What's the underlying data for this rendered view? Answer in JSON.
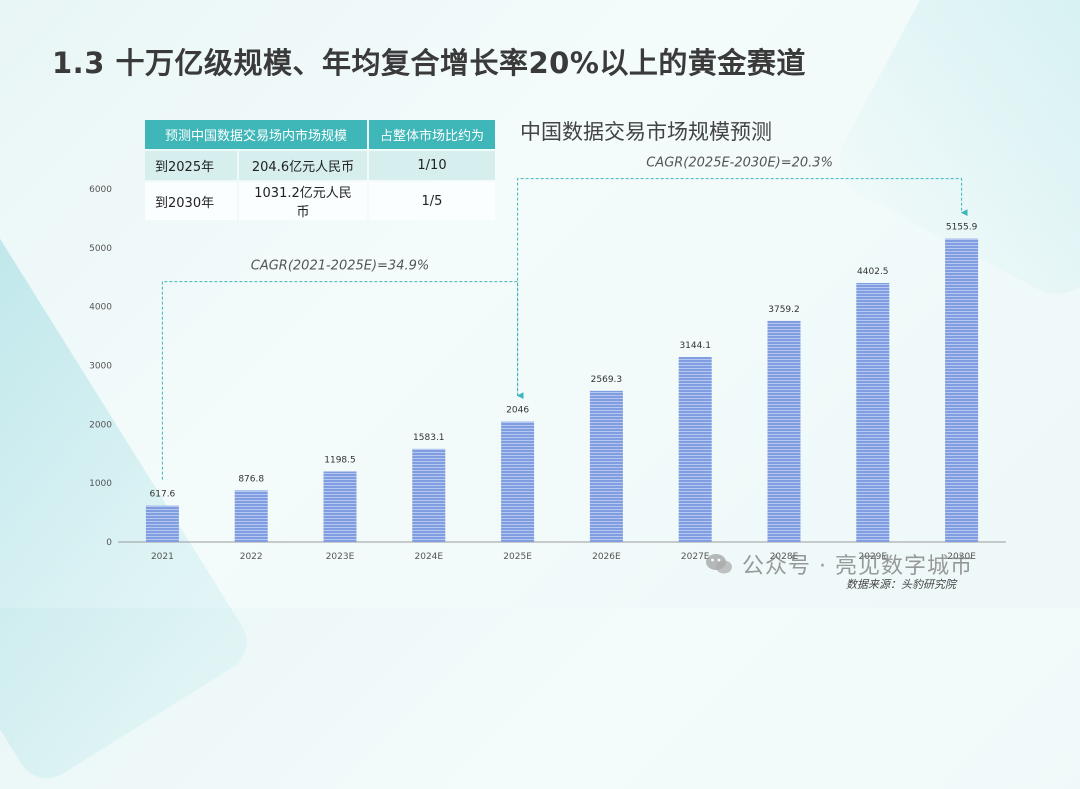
{
  "title": "1.3 十万亿级规模、年均复合增长率20%以上的黄金赛道",
  "table": {
    "headers": [
      "预测中国数据交易场内市场规模",
      "占整体市场比约为"
    ],
    "rows": [
      {
        "year": "到2025年",
        "value": "204.6亿元人民币",
        "share": "1/10"
      },
      {
        "year": "到2030年",
        "value": "1031.2亿元人民币",
        "share": "1/5"
      }
    ]
  },
  "chart_data": {
    "type": "bar",
    "title": "中国数据交易市场规模预测",
    "categories": [
      "2021",
      "2022",
      "2023E",
      "2024E",
      "2025E",
      "2026E",
      "2027E",
      "2028E",
      "2029E",
      "2030E"
    ],
    "values": [
      617.6,
      876.8,
      1198.5,
      1583.1,
      2046,
      2569.3,
      3144.1,
      3759.2,
      4402.5,
      5155.9
    ],
    "value_labels": [
      "617.6",
      "876.8",
      "1198.5",
      "1583.1",
      "2046",
      "2569.3",
      "3144.1",
      "3759.2",
      "4402.5",
      "5155.9"
    ],
    "yticks": [
      "0",
      "1000",
      "2000",
      "3000",
      "4000",
      "5000",
      "6000"
    ],
    "ylim": [
      0,
      6000
    ],
    "grid": false,
    "bar_color": "#6f8fd6",
    "annotations": [
      {
        "text": "CAGR(2021-2025E)=34.9%",
        "from": "2021",
        "to": "2025E"
      },
      {
        "text": "CAGR(2025E-2030E)=20.3%",
        "from": "2025E",
        "to": "2030E"
      }
    ],
    "accent_color": "#3fb6b8"
  },
  "source": "数据来源：头豹研究院",
  "watermark": "公众号 · 亮见数字城市"
}
